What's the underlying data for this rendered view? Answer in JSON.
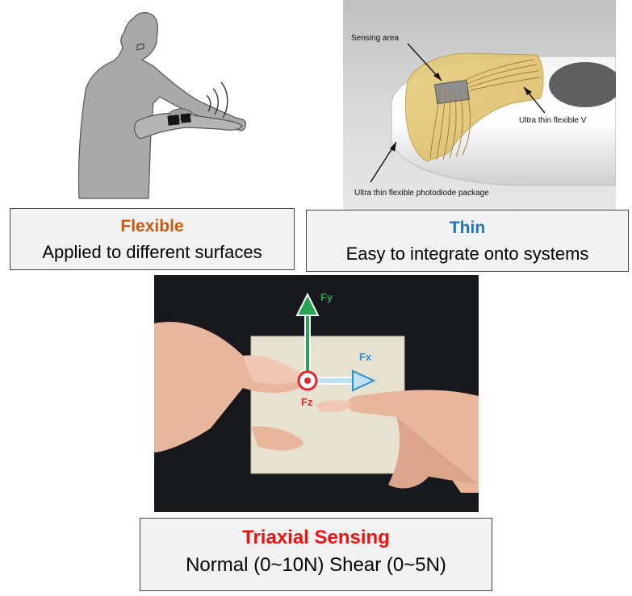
{
  "colors": {
    "flexible": "#c55a11",
    "thin": "#1f74c1",
    "triaxial": "#ee1111",
    "fy_arrow": "#25a553",
    "fx_arrow": "#2a8fd6",
    "fz_marker": "#e0262b"
  },
  "panels": {
    "sensor": {
      "sensing_area_label": "Sensing area",
      "ultra_thin_label": "Ultra thin flexible V",
      "package_label": "Ultra thin flexible photodiode package"
    },
    "touch": {
      "fy_label": "Fy",
      "fx_label": "Fx",
      "fz_label": "Fz"
    }
  },
  "captions": {
    "flexible": {
      "title": "Flexible",
      "subtitle": "Applied to different surfaces"
    },
    "thin": {
      "title": "Thin",
      "subtitle": "Easy to integrate onto systems"
    },
    "triaxial": {
      "title": "Triaxial Sensing",
      "subtitle": "Normal (0~10N) Shear (0~5N)"
    }
  }
}
